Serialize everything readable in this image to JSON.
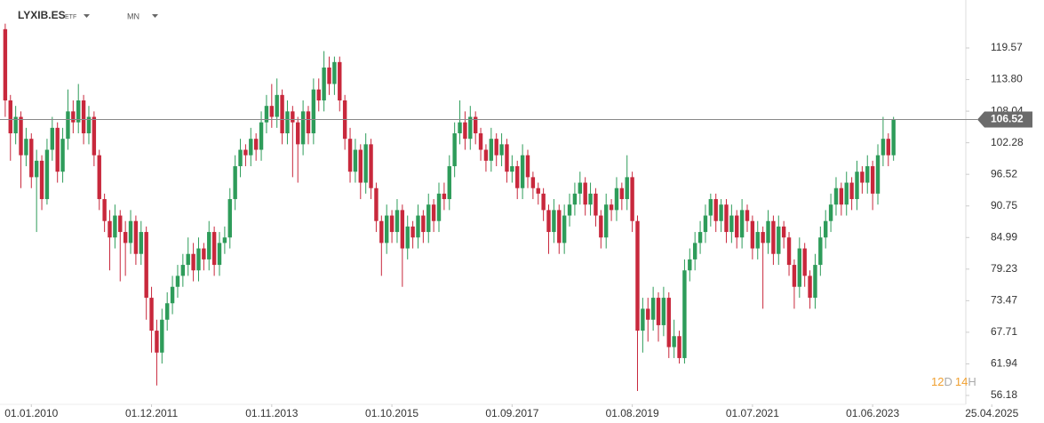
{
  "header": {
    "symbol": "LYXIB.ES",
    "symbol_type": "ETF",
    "period": "MN"
  },
  "timer": [
    "12",
    "D",
    "14",
    "H"
  ],
  "chart_data": {
    "type": "candlestick",
    "up_color": "#2e9c5a",
    "down_color": "#c8283c",
    "last_price": 106.52,
    "xlim": [
      "01.07.2009",
      "01.12.2024"
    ],
    "xticks": [
      "01.01.2010",
      "01.12.2011",
      "01.11.2013",
      "01.10.2015",
      "01.09.2017",
      "01.08.2019",
      "01.07.2021",
      "01.06.2023",
      "25.04.2025"
    ],
    "ylim": [
      54.56,
      128.32
    ],
    "yticks": [
      119.57,
      {
        "value": 113.8,
        "label": "113.80"
      },
      108.04,
      102.28,
      96.52,
      90.75,
      84.99,
      79.23,
      73.47,
      67.71,
      61.94,
      56.18
    ],
    "x": [
      "01.08.2009",
      "01.09.2009",
      "01.10.2009",
      "01.11.2009",
      "01.12.2009",
      "01.01.2010",
      "01.02.2010",
      "01.03.2010",
      "01.04.2010",
      "01.05.2010",
      "01.06.2010",
      "01.07.2010",
      "01.08.2010",
      "01.09.2010",
      "01.10.2010",
      "01.11.2010",
      "01.12.2010",
      "01.01.2011",
      "01.02.2011",
      "01.03.2011",
      "01.04.2011",
      "01.05.2011",
      "01.06.2011",
      "01.07.2011",
      "01.08.2011",
      "01.09.2011",
      "01.10.2011",
      "01.11.2011",
      "01.12.2011",
      "01.01.2012",
      "01.02.2012",
      "01.03.2012",
      "01.04.2012",
      "01.05.2012",
      "01.06.2012",
      "01.07.2012",
      "01.08.2012",
      "01.09.2012",
      "01.10.2012",
      "01.11.2012",
      "01.12.2012",
      "01.01.2013",
      "01.02.2013",
      "01.03.2013",
      "01.04.2013",
      "01.05.2013",
      "01.06.2013",
      "01.07.2013",
      "01.08.2013",
      "01.09.2013",
      "01.10.2013",
      "01.11.2013",
      "01.12.2013",
      "01.01.2014",
      "01.02.2014",
      "01.03.2014",
      "01.04.2014",
      "01.05.2014",
      "01.06.2014",
      "01.07.2014",
      "01.08.2014",
      "01.09.2014",
      "01.10.2014",
      "01.11.2014",
      "01.12.2014",
      "01.01.2015",
      "01.02.2015",
      "01.03.2015",
      "01.04.2015",
      "01.05.2015",
      "01.06.2015",
      "01.07.2015",
      "01.08.2015",
      "01.09.2015",
      "01.10.2015",
      "01.11.2015",
      "01.12.2015",
      "01.01.2016",
      "01.02.2016",
      "01.03.2016",
      "01.04.2016",
      "01.05.2016",
      "01.06.2016",
      "01.07.2016",
      "01.08.2016",
      "01.09.2016",
      "01.10.2016",
      "01.11.2016",
      "01.12.2016",
      "01.01.2017",
      "01.02.2017",
      "01.03.2017",
      "01.04.2017",
      "01.05.2017",
      "01.06.2017",
      "01.07.2017",
      "01.08.2017",
      "01.09.2017",
      "01.10.2017",
      "01.11.2017",
      "01.12.2017",
      "01.01.2018",
      "01.02.2018",
      "01.03.2018",
      "01.04.2018",
      "01.05.2018",
      "01.06.2018",
      "01.07.2018",
      "01.08.2018",
      "01.09.2018",
      "01.10.2018",
      "01.11.2018",
      "01.12.2018",
      "01.01.2019",
      "01.02.2019",
      "01.03.2019",
      "01.04.2019",
      "01.05.2019",
      "01.06.2019",
      "01.07.2019",
      "01.08.2019",
      "01.09.2019",
      "01.10.2019",
      "01.11.2019",
      "01.12.2019",
      "01.01.2020",
      "01.02.2020",
      "01.03.2020",
      "01.04.2020",
      "01.05.2020",
      "01.06.2020",
      "01.07.2020",
      "01.08.2020",
      "01.09.2020",
      "01.10.2020",
      "01.11.2020",
      "01.12.2020",
      "01.01.2021",
      "01.02.2021",
      "01.03.2021",
      "01.04.2021",
      "01.05.2021",
      "01.06.2021",
      "01.07.2021",
      "01.08.2021",
      "01.09.2021",
      "01.10.2021",
      "01.11.2021",
      "01.12.2021",
      "01.01.2022",
      "01.02.2022",
      "01.03.2022",
      "01.04.2022",
      "01.05.2022",
      "01.06.2022",
      "01.07.2022",
      "01.08.2022",
      "01.09.2022",
      "01.10.2022",
      "01.11.2022",
      "01.12.2022",
      "01.01.2023",
      "01.02.2023",
      "01.03.2023",
      "01.04.2023",
      "01.05.2023",
      "01.06.2023",
      "01.07.2023",
      "01.08.2023",
      "01.09.2023",
      "01.10.2023"
    ],
    "ohlc": [
      [
        123,
        124,
        107,
        110
      ],
      [
        110,
        111,
        99,
        104
      ],
      [
        104,
        109,
        102,
        107
      ],
      [
        107,
        108,
        94,
        100
      ],
      [
        100,
        105,
        98,
        103
      ],
      [
        103,
        104,
        94,
        96
      ],
      [
        96,
        101,
        86,
        99
      ],
      [
        99,
        100,
        90,
        92
      ],
      [
        92,
        103,
        91,
        101
      ],
      [
        101,
        107,
        99,
        105
      ],
      [
        105,
        106,
        95,
        97
      ],
      [
        97,
        105,
        95,
        103
      ],
      [
        103,
        112,
        101,
        108
      ],
      [
        108,
        110,
        104,
        106
      ],
      [
        106,
        113,
        104,
        110
      ],
      [
        110,
        111,
        102,
        104
      ],
      [
        104,
        109,
        102,
        107
      ],
      [
        107,
        108,
        98,
        100
      ],
      [
        100,
        101,
        90,
        92
      ],
      [
        92,
        93,
        86,
        88
      ],
      [
        88,
        90,
        79,
        85
      ],
      [
        85,
        91,
        83,
        89
      ],
      [
        89,
        90,
        77,
        86
      ],
      [
        86,
        88,
        78,
        84
      ],
      [
        84,
        90,
        82,
        88
      ],
      [
        88,
        89,
        80,
        82
      ],
      [
        82,
        88,
        80,
        86
      ],
      [
        86,
        87,
        70,
        74
      ],
      [
        74,
        76,
        64,
        68
      ],
      [
        68,
        70,
        58,
        64
      ],
      [
        64,
        72,
        62,
        70
      ],
      [
        70,
        75,
        68,
        73
      ],
      [
        73,
        78,
        71,
        76
      ],
      [
        76,
        80,
        74,
        78
      ],
      [
        78,
        82,
        76,
        80
      ],
      [
        80,
        85,
        78,
        82
      ],
      [
        82,
        84,
        77,
        79
      ],
      [
        79,
        85,
        77,
        83
      ],
      [
        83,
        84,
        79,
        81
      ],
      [
        81,
        88,
        79,
        86
      ],
      [
        86,
        87,
        78,
        80
      ],
      [
        80,
        86,
        78,
        84
      ],
      [
        84,
        87,
        82,
        85
      ],
      [
        85,
        94,
        83,
        92
      ],
      [
        92,
        100,
        90,
        98
      ],
      [
        98,
        103,
        96,
        101
      ],
      [
        101,
        102,
        98,
        100
      ],
      [
        100,
        105,
        98,
        103
      ],
      [
        103,
        104,
        99,
        101
      ],
      [
        101,
        108,
        99,
        106
      ],
      [
        106,
        111,
        104,
        109
      ],
      [
        109,
        113,
        105,
        107
      ],
      [
        107,
        114,
        105,
        111
      ],
      [
        111,
        112,
        102,
        104
      ],
      [
        104,
        110,
        102,
        108
      ],
      [
        108,
        109,
        96,
        106
      ],
      [
        106,
        107,
        95,
        102
      ],
      [
        102,
        110,
        100,
        108
      ],
      [
        108,
        109,
        102,
        104
      ],
      [
        104,
        114,
        102,
        112
      ],
      [
        112,
        114,
        108,
        110
      ],
      [
        110,
        119,
        108,
        116
      ],
      [
        116,
        118,
        111,
        113
      ],
      [
        113,
        118,
        111,
        117
      ],
      [
        117,
        118,
        108,
        110
      ],
      [
        110,
        111,
        101,
        103
      ],
      [
        103,
        105,
        95,
        97
      ],
      [
        97,
        103,
        95,
        101
      ],
      [
        101,
        102,
        92,
        95
      ],
      [
        95,
        104,
        93,
        102
      ],
      [
        102,
        103,
        92,
        94
      ],
      [
        94,
        95,
        86,
        88
      ],
      [
        88,
        89,
        78,
        84
      ],
      [
        84,
        91,
        82,
        89
      ],
      [
        89,
        90,
        84,
        86
      ],
      [
        86,
        92,
        84,
        90
      ],
      [
        90,
        91,
        76,
        83
      ],
      [
        83,
        89,
        81,
        87
      ],
      [
        87,
        88,
        83,
        85
      ],
      [
        85,
        91,
        83,
        89
      ],
      [
        89,
        90,
        84,
        86
      ],
      [
        86,
        93,
        84,
        91
      ],
      [
        91,
        92,
        86,
        88
      ],
      [
        88,
        95,
        86,
        93
      ],
      [
        93,
        95,
        90,
        92
      ],
      [
        92,
        100,
        90,
        98
      ],
      [
        98,
        106,
        96,
        104
      ],
      [
        104,
        110,
        102,
        106
      ],
      [
        106,
        108,
        101,
        103
      ],
      [
        103,
        109,
        101,
        107
      ],
      [
        107,
        108,
        102,
        104
      ],
      [
        104,
        105,
        99,
        101
      ],
      [
        101,
        102,
        97,
        99
      ],
      [
        99,
        105,
        97,
        103
      ],
      [
        103,
        104,
        98,
        100
      ],
      [
        100,
        104,
        98,
        102
      ],
      [
        102,
        103,
        95,
        97
      ],
      [
        97,
        100,
        95,
        98
      ],
      [
        98,
        99,
        92,
        94
      ],
      [
        94,
        102,
        92,
        100
      ],
      [
        100,
        101,
        94,
        96
      ],
      [
        96,
        97,
        92,
        94
      ],
      [
        94,
        95,
        91,
        93
      ],
      [
        93,
        94,
        88,
        90
      ],
      [
        90,
        91,
        82,
        86
      ],
      [
        86,
        92,
        84,
        90
      ],
      [
        90,
        91,
        82,
        84
      ],
      [
        84,
        91,
        82,
        89
      ],
      [
        89,
        93,
        87,
        91
      ],
      [
        91,
        95,
        89,
        93
      ],
      [
        93,
        97,
        91,
        95
      ],
      [
        95,
        96,
        89,
        91
      ],
      [
        91,
        95,
        89,
        93
      ],
      [
        93,
        94,
        87,
        89
      ],
      [
        89,
        90,
        83,
        85
      ],
      [
        85,
        93,
        83,
        91
      ],
      [
        91,
        92,
        88,
        90
      ],
      [
        90,
        96,
        88,
        94
      ],
      [
        94,
        95,
        90,
        92
      ],
      [
        92,
        100,
        90,
        96
      ],
      [
        96,
        97,
        86,
        88
      ],
      [
        88,
        89,
        57,
        68
      ],
      [
        68,
        74,
        64,
        72
      ],
      [
        72,
        74,
        66,
        70
      ],
      [
        70,
        76,
        68,
        74
      ],
      [
        74,
        75,
        66,
        69
      ],
      [
        69,
        76,
        67,
        74
      ],
      [
        74,
        75,
        63,
        65
      ],
      [
        65,
        70,
        63,
        67
      ],
      [
        67,
        68,
        62,
        63
      ],
      [
        63,
        81,
        62,
        79
      ],
      [
        79,
        83,
        77,
        81
      ],
      [
        81,
        86,
        79,
        84
      ],
      [
        84,
        88,
        82,
        86
      ],
      [
        86,
        91,
        84,
        89
      ],
      [
        89,
        93,
        87,
        92
      ],
      [
        92,
        93,
        86,
        88
      ],
      [
        88,
        92,
        86,
        91
      ],
      [
        91,
        92,
        84,
        86
      ],
      [
        86,
        91,
        84,
        89
      ],
      [
        89,
        90,
        83,
        85
      ],
      [
        85,
        92,
        83,
        90
      ],
      [
        90,
        91,
        86,
        88
      ],
      [
        88,
        89,
        81,
        83
      ],
      [
        83,
        88,
        81,
        86
      ],
      [
        86,
        87,
        72,
        84
      ],
      [
        84,
        90,
        82,
        88
      ],
      [
        88,
        89,
        80,
        82
      ],
      [
        82,
        89,
        80,
        87
      ],
      [
        87,
        88,
        83,
        85
      ],
      [
        85,
        86,
        78,
        80
      ],
      [
        80,
        81,
        72,
        76
      ],
      [
        76,
        85,
        74,
        83
      ],
      [
        83,
        84,
        76,
        78
      ],
      [
        78,
        79,
        72,
        74
      ],
      [
        74,
        82,
        72,
        80
      ],
      [
        80,
        87,
        78,
        85
      ],
      [
        85,
        90,
        83,
        88
      ],
      [
        88,
        93,
        86,
        91
      ],
      [
        91,
        96,
        89,
        94
      ],
      [
        94,
        95,
        89,
        91
      ],
      [
        91,
        97,
        89,
        95
      ],
      [
        95,
        96,
        90,
        92
      ],
      [
        92,
        99,
        90,
        97
      ],
      [
        97,
        98,
        93,
        95
      ],
      [
        95,
        100,
        93,
        98
      ],
      [
        98,
        99,
        90,
        93
      ],
      [
        93,
        102,
        91,
        100
      ],
      [
        100,
        107,
        98,
        103
      ],
      [
        103,
        104,
        98,
        100
      ],
      [
        100,
        107,
        99,
        106.52
      ]
    ]
  }
}
